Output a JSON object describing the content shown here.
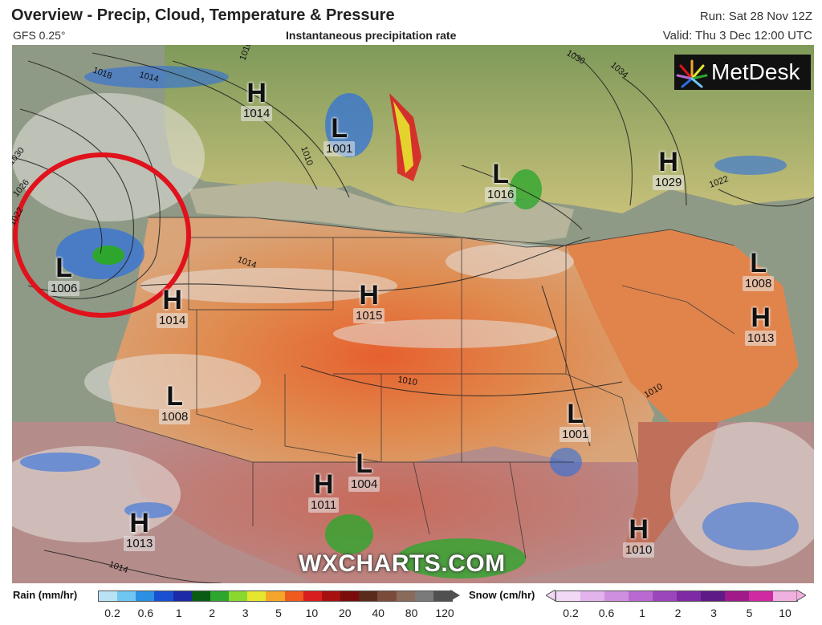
{
  "header": {
    "title": "Overview - Precip, Cloud, Temperature & Pressure",
    "model": "GFS 0.25°",
    "subtitle": "Instantaneous precipitation rate",
    "run": "Run: Sat 28 Nov 12Z",
    "valid": "Valid: Thu 3 Dec 12:00 UTC"
  },
  "logo": {
    "text": "MetDesk"
  },
  "watermark": "WXCHARTS.COM",
  "pressure_centers": [
    {
      "type": "H",
      "value": "1014"
    },
    {
      "type": "L",
      "value": "1001"
    },
    {
      "type": "L",
      "value": "1016"
    },
    {
      "type": "H",
      "value": "1029"
    },
    {
      "type": "L",
      "value": "1006"
    },
    {
      "type": "H",
      "value": "1014"
    },
    {
      "type": "H",
      "value": "1015"
    },
    {
      "type": "L",
      "value": "1008"
    },
    {
      "type": "H",
      "value": "1013"
    },
    {
      "type": "L",
      "value": "1008"
    },
    {
      "type": "L",
      "value": "1001"
    },
    {
      "type": "L",
      "value": "1004"
    },
    {
      "type": "H",
      "value": "1011"
    },
    {
      "type": "H",
      "value": "1013"
    },
    {
      "type": "H",
      "value": "1010"
    }
  ],
  "isobar_labels": [
    "1018",
    "1014",
    "1010",
    "1030",
    "1026",
    "1022",
    "1014",
    "1010",
    "1034",
    "1030",
    "1022",
    "1010",
    "1010",
    "1014"
  ],
  "legend": {
    "rain": {
      "title": "Rain (mm/hr)",
      "ticks": [
        "0.2",
        "0.6",
        "1",
        "2",
        "3",
        "5",
        "10",
        "20",
        "40",
        "80",
        "120"
      ],
      "colors": [
        "#b9e3f5",
        "#6fc6f0",
        "#2b8fe3",
        "#1a4fd1",
        "#1d2aa8",
        "#0a5c14",
        "#2ea62e",
        "#8ad82e",
        "#e6e62e",
        "#f5a52a",
        "#ef5a1e",
        "#d81e1e",
        "#a8100f",
        "#7a0c0c",
        "#5a2a1a",
        "#7a4a3a",
        "#8a6a5a",
        "#7a7a7a",
        "#505050"
      ]
    },
    "snow": {
      "title": "Snow (cm/hr)",
      "ticks": [
        "0.2",
        "0.6",
        "1",
        "2",
        "3",
        "5",
        "10"
      ],
      "colors": [
        "#f2d9f5",
        "#e2b3ec",
        "#cf8fe0",
        "#b86ad0",
        "#9c46bc",
        "#7e2aa4",
        "#5e1a86",
        "#a01a8a",
        "#d02aa0",
        "#f0b0e0"
      ]
    }
  },
  "colors": {
    "map_bg": "#c8a888",
    "sahara_hot": "#e8703a",
    "high_pressure_symbol": "#111111",
    "annotation_circle": "#e0121c"
  }
}
